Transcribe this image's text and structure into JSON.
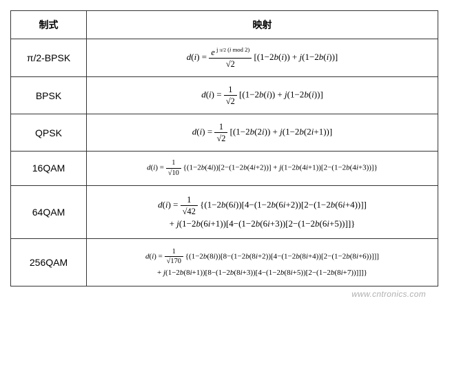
{
  "table": {
    "header_mode": "制式",
    "header_mapping": "映射",
    "border_color": "#333333",
    "background": "#ffffff",
    "font_header": "bold 14px Microsoft YaHei",
    "font_formula": "13px Times New Roman",
    "rows": [
      {
        "mode": "π/2-BPSK",
        "scale_num": "e^{j(π/2)(i mod 2)}",
        "scale_den": "√2",
        "body": "[(1−2b(i)) + j(1−2b(i))]"
      },
      {
        "mode": "BPSK",
        "scale_num": "1",
        "scale_den": "√2",
        "body": "[(1−2b(i)) + j(1−2b(i))]"
      },
      {
        "mode": "QPSK",
        "scale_num": "1",
        "scale_den": "√2",
        "body": "[(1−2b(2i)) + j(1−2b(2i+1))]"
      },
      {
        "mode": "16QAM",
        "scale_num": "1",
        "scale_den": "√10",
        "body": "{(1−2b(4i))[2−(1−2b(4i+2))] + j(1−2b(4i+1))[2−(1−2b(4i+3))]}"
      },
      {
        "mode": "64QAM",
        "scale_num": "1",
        "scale_den": "√42",
        "line1": "{(1−2b(6i))[4−(1−2b(6i+2))[2−(1−2b(6i+4))]]",
        "line2": "+ j(1−2b(6i+1))[4−(1−2b(6i+3))[2−(1−2b(6i+5))]]}"
      },
      {
        "mode": "256QAM",
        "scale_num": "1",
        "scale_den": "√170",
        "line1": "{(1−2b(8i))[8−(1−2b(8i+2))[4−(1−2b(8i+4))[2−(1−2b(8i+6))]]]",
        "line2": "+ j(1−2b(8i+1))[8−(1−2b(8i+3))[4−(1−2b(8i+5))[2−(1−2b(8i+7))]]]}"
      }
    ]
  },
  "watermark": "www.cntronics.com"
}
